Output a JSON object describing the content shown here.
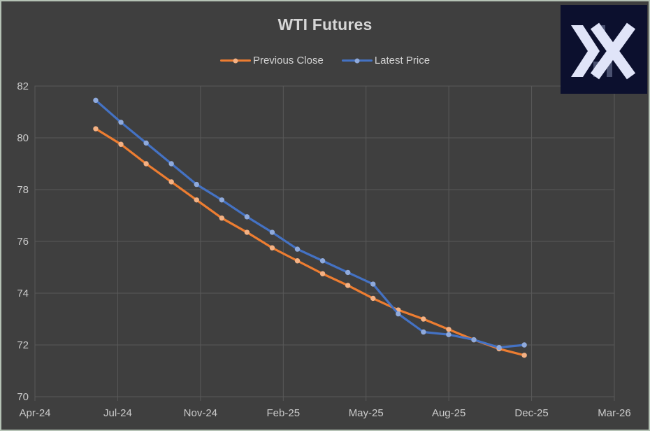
{
  "window": {
    "background": "#3F3F3F",
    "border_color": "#B5C2B5"
  },
  "chart_data": {
    "type": "line",
    "title": "WTI Futures",
    "x_tick_labels": [
      "Apr-24",
      "Jul-24",
      "Nov-24",
      "Feb-25",
      "May-25",
      "Aug-25",
      "Dec-25",
      "Mar-26"
    ],
    "y_ticks": [
      70,
      72,
      74,
      76,
      78,
      80,
      82
    ],
    "ylim": [
      70,
      82
    ],
    "grid": true,
    "legend_position": "top",
    "x_start_frac": 0.1049,
    "x_step_frac": 0.04351,
    "series": [
      {
        "name": "Previous Close",
        "color": "#ED7D31",
        "marker_color": "#F4B183",
        "values": [
          80.35,
          79.75,
          79.0,
          78.3,
          77.6,
          76.9,
          76.35,
          75.75,
          75.25,
          74.75,
          74.3,
          73.8,
          73.35,
          73.0,
          72.6,
          72.2,
          71.85,
          71.6
        ]
      },
      {
        "name": "Latest Price",
        "color": "#4472C4",
        "marker_color": "#8FAADC",
        "values": [
          81.45,
          80.6,
          79.8,
          79.0,
          78.2,
          77.6,
          76.95,
          76.35,
          75.7,
          75.25,
          74.8,
          74.35,
          73.2,
          72.5,
          72.4,
          72.2,
          71.9,
          72.0
        ]
      }
    ],
    "colors": {
      "grid": "#595959",
      "axis_text": "#CBCBCB",
      "title_text": "#D6D6D6"
    }
  },
  "logo": {
    "background": "#0C102E",
    "glyph_color": "#E0E4F8",
    "muted_color": "#4A5170"
  }
}
